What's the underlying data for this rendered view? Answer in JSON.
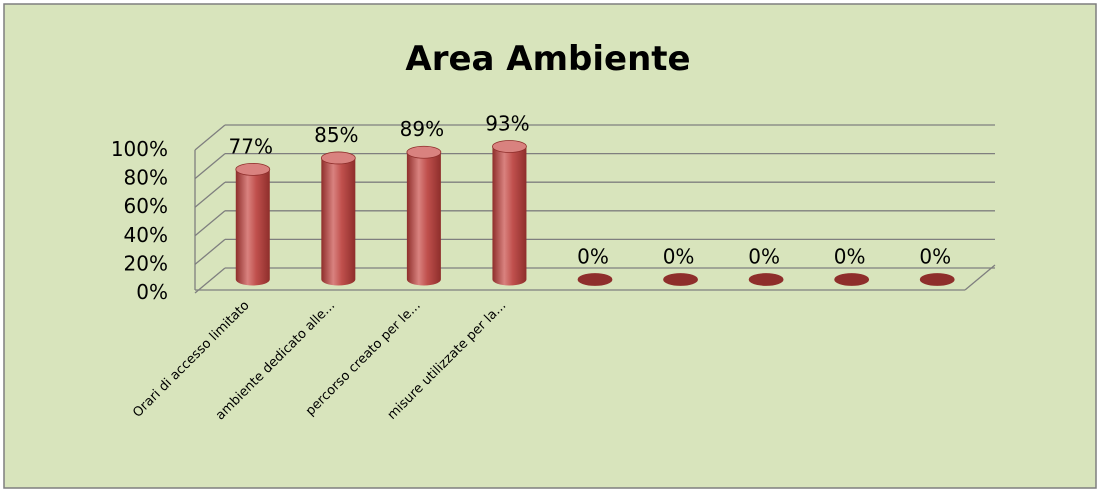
{
  "chart_data": {
    "type": "bar",
    "title": "Area Ambiente",
    "categories": [
      "Orari di accesso limitato",
      "ambiente dedicato alle...",
      "percorso creato per le...",
      "misure utilizzate per la...",
      "",
      "",
      "",
      "",
      ""
    ],
    "values": [
      77,
      85,
      89,
      93,
      0,
      0,
      0,
      0,
      0
    ],
    "data_labels": [
      "77%",
      "85%",
      "89%",
      "93%",
      "0%",
      "0%",
      "0%",
      "0%",
      "0%"
    ],
    "yticks": [
      "0%",
      "20%",
      "40%",
      "60%",
      "80%",
      "100%"
    ],
    "ylim": [
      0,
      100
    ],
    "grid": true,
    "legend": "none",
    "style": "3d-cylinder",
    "colors": {
      "background": "#d8e4bc",
      "frame": "#7f7f7f",
      "bar": "#c0504d",
      "bar_dark": "#8e2e2b",
      "bar_light": "#d9827f",
      "grid": "#7f7f7f"
    }
  }
}
